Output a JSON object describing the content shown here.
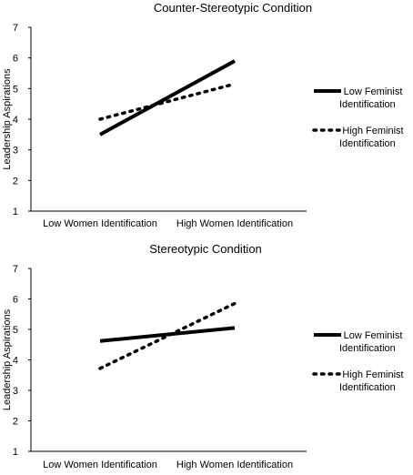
{
  "chart_data": [
    {
      "type": "line",
      "title": "Counter-Stereotypic Condition",
      "xlabel": "",
      "ylabel": "Leadership Aspirations",
      "categories": [
        "Low Women Identification",
        "High Women Identification"
      ],
      "ylim": [
        1,
        7
      ],
      "yticks": [
        "1",
        "2",
        "3",
        "4",
        "5",
        "6",
        "7"
      ],
      "grid": false,
      "legend_position": "right",
      "series": [
        {
          "name": "Low Feminist Identification",
          "values": [
            3.5,
            5.9
          ],
          "style": "solid",
          "color": "#000000"
        },
        {
          "name": "High Feminist Identification",
          "values": [
            4.0,
            5.15
          ],
          "style": "dotted",
          "color": "#000000"
        }
      ]
    },
    {
      "type": "line",
      "title": "Stereotypic Condition",
      "xlabel": "",
      "ylabel": "Leadership Aspirations",
      "categories": [
        "Low Women Identification",
        "High Women Identification"
      ],
      "ylim": [
        1,
        7
      ],
      "yticks": [
        "1",
        "2",
        "3",
        "4",
        "5",
        "6",
        "7"
      ],
      "grid": false,
      "legend_position": "right",
      "series": [
        {
          "name": "Low Feminist Identification",
          "values": [
            4.62,
            5.05
          ],
          "style": "solid",
          "color": "#000000"
        },
        {
          "name": "High Feminist Identification",
          "values": [
            3.72,
            5.85
          ],
          "style": "dotted",
          "color": "#000000"
        }
      ]
    }
  ],
  "legend_lines": [
    [
      "Low Feminist",
      "Identification"
    ],
    [
      "High Feminist",
      "Identification"
    ]
  ]
}
